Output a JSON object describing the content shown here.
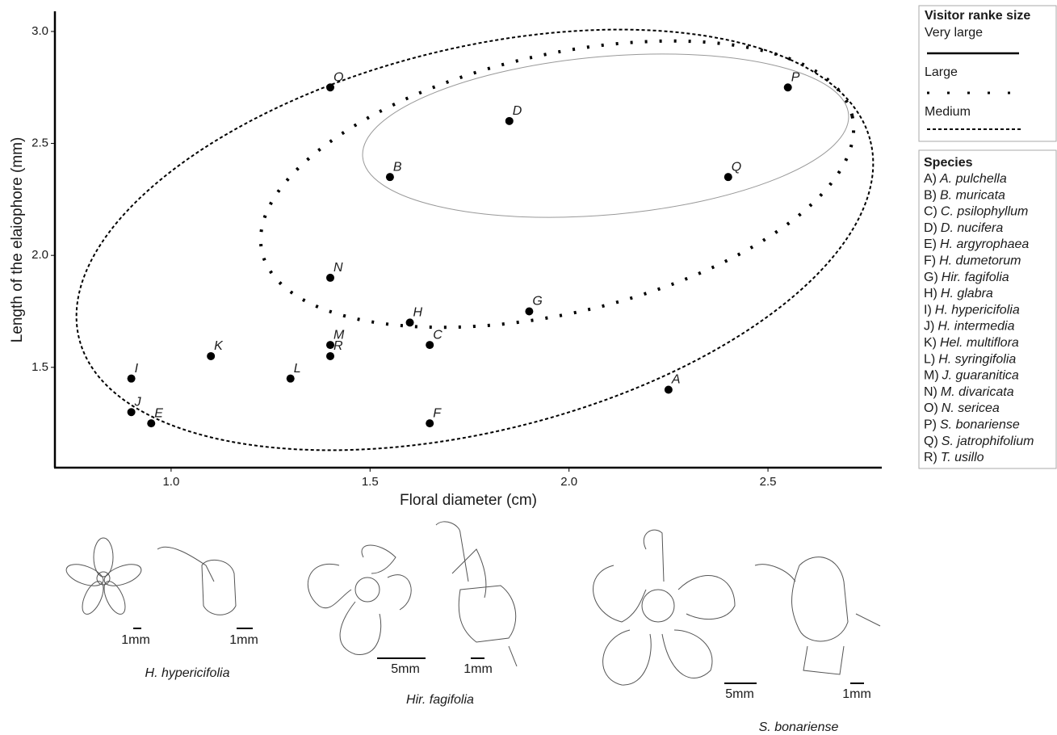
{
  "chart_data": {
    "type": "scatter",
    "xlabel": "Floral diameter (cm)",
    "ylabel": "Length of the elaiophore (mm)",
    "x": [
      2.25,
      1.55,
      1.65,
      1.85,
      0.95,
      1.65,
      1.9,
      1.6,
      0.9,
      0.9,
      1.1,
      1.3,
      1.4,
      1.4,
      1.4,
      2.55,
      2.4,
      1.4
    ],
    "values": [
      1.4,
      2.35,
      1.6,
      2.6,
      1.25,
      1.25,
      1.75,
      1.7,
      1.45,
      1.3,
      1.55,
      1.45,
      1.6,
      1.9,
      2.75,
      2.75,
      2.35,
      1.55
    ],
    "labels": [
      "A",
      "B",
      "C",
      "D",
      "E",
      "F",
      "G",
      "H",
      "I",
      "J",
      "K",
      "L",
      "M",
      "N",
      "O",
      "P",
      "Q",
      "R"
    ],
    "color": "#000000",
    "xlim": [
      0.708,
      2.786
    ],
    "xticks": [
      {
        "value": 1,
        "label": "1.0"
      },
      1.5,
      {
        "value": 2,
        "label": "2.0"
      },
      2.5
    ],
    "ylim": [
      1.052,
      3.09
    ],
    "yticks": [
      1.5,
      {
        "value": 2,
        "label": "2.0"
      },
      2.5,
      {
        "value": 3,
        "label": "3.0"
      }
    ],
    "visitor_legend": {
      "title": "Visitor ranke size",
      "items": [
        "Very large",
        "Large",
        "Medium"
      ]
    },
    "species_legend": {
      "title": "Species",
      "items": [
        {
          "code": "A)",
          "name": "A. pulchella"
        },
        {
          "code": "B)",
          "name": "B. muricata"
        },
        {
          "code": "C)",
          "name": "C. psilophyllum"
        },
        {
          "code": "D)",
          "name": "D. nucifera"
        },
        {
          "code": "E)",
          "name": "H. argyrophaea"
        },
        {
          "code": "F)",
          "name": "H. dumetorum"
        },
        {
          "code": "G)",
          "name": "Hir. fagifolia"
        },
        {
          "code": "H)",
          "name": "H. glabra"
        },
        {
          "code": "I)",
          "name": "H. hypericifolia"
        },
        {
          "code": "J)",
          "name": "H. intermedia"
        },
        {
          "code": "K)",
          "name": "Hel. multiflora"
        },
        {
          "code": "L)",
          "name": "H. syringifolia"
        },
        {
          "code": "M)",
          "name": "J. guaranitica"
        },
        {
          "code": "N)",
          "name": "M. divaricata"
        },
        {
          "code": "O)",
          "name": "N. sericea"
        },
        {
          "code": "P)",
          "name": "S. bonariense"
        },
        {
          "code": "Q)",
          "name": "S. jatrophifolium"
        },
        {
          "code": "R)",
          "name": "T. usillo"
        }
      ]
    }
  },
  "illustrations": [
    {
      "caption": "H. hypericifolia",
      "scales": [
        "1mm",
        "1mm"
      ]
    },
    {
      "caption": "Hir. fagifolia",
      "scales": [
        "5mm",
        "1mm"
      ]
    },
    {
      "caption": "S. bonariense",
      "scales": [
        "5mm",
        "1mm"
      ]
    }
  ]
}
